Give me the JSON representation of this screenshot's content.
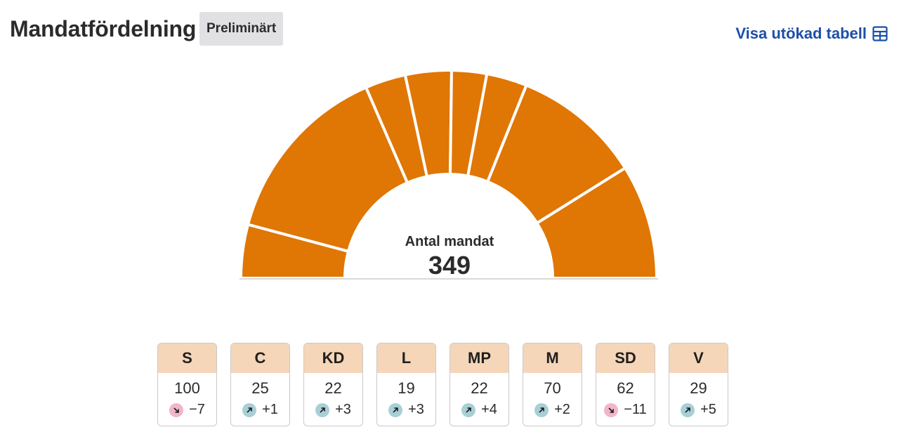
{
  "header": {
    "title": "Mandatfördelning",
    "badge": "Preliminärt",
    "table_link": "Visa utökad tabell",
    "table_icon": "table-icon"
  },
  "colors": {
    "segment": "#e07604",
    "separator": "#ffffff",
    "card_header": "#f6d6b8",
    "link": "#1c4fa8",
    "up_dot": "#a9cfd6",
    "down_dot": "#f1b6c8"
  },
  "center": {
    "caption": "Antal mandat",
    "total": "349"
  },
  "chart_data": {
    "type": "pie",
    "style": "semicircle",
    "total": 349,
    "arc_order": [
      "V",
      "S",
      "MP",
      "C",
      "L",
      "KD",
      "M",
      "SD"
    ],
    "categories": [
      "S",
      "C",
      "KD",
      "L",
      "MP",
      "M",
      "SD",
      "V"
    ],
    "values": [
      100,
      25,
      22,
      19,
      22,
      70,
      62,
      29
    ],
    "changes": [
      "−7",
      "+1",
      "+3",
      "+3",
      "+4",
      "+2",
      "−11",
      "+5"
    ],
    "directions": [
      "down",
      "up",
      "up",
      "up",
      "up",
      "up",
      "down",
      "up"
    ]
  }
}
